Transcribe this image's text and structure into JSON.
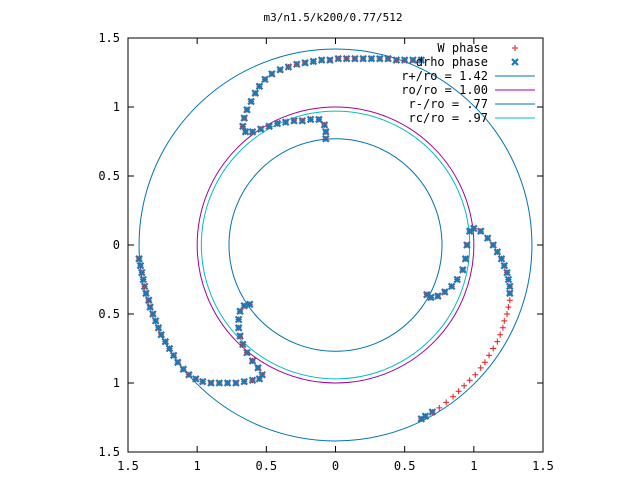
{
  "chart_data": {
    "type": "scatter",
    "title": "m3/n1.5/k200/0.77/512",
    "xlabel": "",
    "ylabel": "",
    "xlim": [
      -1.5,
      1.5
    ],
    "ylim": [
      -1.5,
      1.5
    ],
    "x_ticks": [
      {
        "value": -1.5,
        "label": "1.5"
      },
      {
        "value": -1,
        "label": "1"
      },
      {
        "value": -0.5,
        "label": "0.5"
      },
      {
        "value": 0,
        "label": "0"
      },
      {
        "value": 0.5,
        "label": "0.5"
      },
      {
        "value": 1,
        "label": "1"
      },
      {
        "value": 1.5,
        "label": "1.5"
      }
    ],
    "y_ticks": [
      {
        "value": 1.5,
        "label": "1.5"
      },
      {
        "value": 1,
        "label": "1"
      },
      {
        "value": 0.5,
        "label": "0.5"
      },
      {
        "value": 0,
        "label": "0"
      },
      {
        "value": -0.5,
        "label": "0.5"
      },
      {
        "value": -1,
        "label": "1"
      },
      {
        "value": -1.5,
        "label": "1.5"
      }
    ],
    "grid": false,
    "legend_position": "top-right",
    "circles": [
      {
        "name": "r+/ro = 1.42",
        "radius": 1.42,
        "color": "#0072b2"
      },
      {
        "name": "ro/ro = 1.00",
        "radius": 1.0,
        "color": "#a000a0"
      },
      {
        "name": "r-/ro = .77",
        "radius": 0.77,
        "color": "#0072b2"
      },
      {
        "name": "rc/ro = .97",
        "radius": 0.97,
        "color": "#00c0c0"
      }
    ],
    "series": [
      {
        "name": "W phase",
        "marker": "plus",
        "color": "#e41a1c",
        "points": [
          [
            -1.42,
            -0.1
          ],
          [
            -1.41,
            -0.15
          ],
          [
            -1.4,
            -0.2
          ],
          [
            -1.39,
            -0.25
          ],
          [
            -1.38,
            -0.3
          ],
          [
            -1.37,
            -0.35
          ],
          [
            -1.35,
            -0.4
          ],
          [
            -1.34,
            -0.45
          ],
          [
            -1.32,
            -0.5
          ],
          [
            -1.3,
            -0.55
          ],
          [
            -1.28,
            -0.6
          ],
          [
            -1.26,
            -0.65
          ],
          [
            -1.23,
            -0.7
          ],
          [
            -1.2,
            -0.75
          ],
          [
            -1.17,
            -0.8
          ],
          [
            -1.14,
            -0.85
          ],
          [
            -1.1,
            -0.9
          ],
          [
            -1.06,
            -0.94
          ],
          [
            -1.01,
            -0.97
          ],
          [
            -0.96,
            -0.99
          ],
          [
            -0.9,
            -1.0
          ],
          [
            -0.84,
            -1.0
          ],
          [
            -0.78,
            -1.0
          ],
          [
            -0.72,
            -1.0
          ],
          [
            -0.66,
            -0.99
          ],
          [
            -0.6,
            -0.98
          ],
          [
            -0.55,
            -0.97
          ],
          [
            -0.53,
            -0.94
          ],
          [
            -0.56,
            -0.89
          ],
          [
            -0.6,
            -0.84
          ],
          [
            -0.64,
            -0.78
          ],
          [
            -0.67,
            -0.72
          ],
          [
            -0.69,
            -0.66
          ],
          [
            -0.7,
            -0.6
          ],
          [
            -0.7,
            -0.54
          ],
          [
            -0.69,
            -0.48
          ],
          [
            -0.66,
            -0.44
          ],
          [
            -0.62,
            -0.43
          ],
          [
            0.62,
            1.34
          ],
          [
            0.56,
            1.34
          ],
          [
            0.5,
            1.34
          ],
          [
            0.44,
            1.34
          ],
          [
            0.38,
            1.35
          ],
          [
            0.32,
            1.35
          ],
          [
            0.26,
            1.35
          ],
          [
            0.2,
            1.35
          ],
          [
            0.14,
            1.35
          ],
          [
            0.08,
            1.35
          ],
          [
            0.02,
            1.35
          ],
          [
            -0.04,
            1.34
          ],
          [
            -0.1,
            1.34
          ],
          [
            -0.16,
            1.33
          ],
          [
            -0.22,
            1.32
          ],
          [
            -0.28,
            1.31
          ],
          [
            -0.34,
            1.29
          ],
          [
            -0.4,
            1.27
          ],
          [
            -0.46,
            1.24
          ],
          [
            -0.51,
            1.2
          ],
          [
            -0.55,
            1.15
          ],
          [
            -0.58,
            1.1
          ],
          [
            -0.61,
            1.04
          ],
          [
            -0.64,
            0.98
          ],
          [
            -0.66,
            0.92
          ],
          [
            -0.67,
            0.86
          ],
          [
            -0.65,
            0.82
          ],
          [
            -0.6,
            0.82
          ],
          [
            -0.54,
            0.84
          ],
          [
            -0.48,
            0.86
          ],
          [
            -0.42,
            0.88
          ],
          [
            -0.36,
            0.89
          ],
          [
            -0.3,
            0.9
          ],
          [
            -0.24,
            0.9
          ],
          [
            -0.18,
            0.91
          ],
          [
            -0.12,
            0.91
          ],
          [
            -0.08,
            0.87
          ],
          [
            -0.07,
            0.82
          ],
          [
            -0.07,
            0.77
          ],
          [
            1.0,
            0.12
          ],
          [
            1.05,
            0.1
          ],
          [
            1.1,
            0.05
          ],
          [
            1.14,
            0.0
          ],
          [
            1.17,
            -0.05
          ],
          [
            1.2,
            -0.1
          ],
          [
            1.22,
            -0.15
          ],
          [
            1.24,
            -0.2
          ],
          [
            1.25,
            -0.25
          ],
          [
            1.26,
            -0.3
          ],
          [
            1.26,
            -0.35
          ],
          [
            1.26,
            -0.4
          ],
          [
            1.25,
            -0.45
          ],
          [
            1.24,
            -0.5
          ],
          [
            1.22,
            -0.55
          ],
          [
            1.21,
            -0.6
          ],
          [
            1.19,
            -0.65
          ],
          [
            1.17,
            -0.7
          ],
          [
            1.14,
            -0.75
          ],
          [
            1.11,
            -0.8
          ],
          [
            1.08,
            -0.85
          ],
          [
            1.05,
            -0.89
          ],
          [
            1.01,
            -0.94
          ],
          [
            0.97,
            -0.98
          ],
          [
            0.93,
            -1.02
          ],
          [
            0.89,
            -1.06
          ],
          [
            0.85,
            -1.1
          ],
          [
            0.8,
            -1.14
          ],
          [
            0.75,
            -1.18
          ],
          [
            0.7,
            -1.21
          ],
          [
            0.65,
            -1.24
          ],
          [
            0.62,
            -1.26
          ],
          [
            0.97,
            0.1
          ],
          [
            0.95,
            0.0
          ],
          [
            0.94,
            -0.1
          ],
          [
            0.92,
            -0.18
          ],
          [
            0.88,
            -0.25
          ],
          [
            0.84,
            -0.3
          ],
          [
            0.79,
            -0.34
          ],
          [
            0.74,
            -0.37
          ],
          [
            0.69,
            -0.38
          ],
          [
            0.66,
            -0.36
          ]
        ]
      },
      {
        "name": "drho phase",
        "marker": "cross",
        "color": "#1f78b4",
        "points": [
          [
            -1.42,
            -0.1
          ],
          [
            -1.41,
            -0.15
          ],
          [
            -1.4,
            -0.2
          ],
          [
            -1.39,
            -0.25
          ],
          [
            -1.38,
            -0.3
          ],
          [
            -1.37,
            -0.35
          ],
          [
            -1.35,
            -0.4
          ],
          [
            -1.34,
            -0.45
          ],
          [
            -1.32,
            -0.5
          ],
          [
            -1.3,
            -0.55
          ],
          [
            -1.28,
            -0.6
          ],
          [
            -1.26,
            -0.65
          ],
          [
            -1.23,
            -0.7
          ],
          [
            -1.2,
            -0.75
          ],
          [
            -1.17,
            -0.8
          ],
          [
            -1.14,
            -0.85
          ],
          [
            -1.1,
            -0.9
          ],
          [
            -1.06,
            -0.94
          ],
          [
            -1.01,
            -0.97
          ],
          [
            -0.96,
            -0.99
          ],
          [
            -0.9,
            -1.0
          ],
          [
            -0.84,
            -1.0
          ],
          [
            -0.78,
            -1.0
          ],
          [
            -0.72,
            -1.0
          ],
          [
            -0.66,
            -0.99
          ],
          [
            -0.6,
            -0.98
          ],
          [
            -0.55,
            -0.97
          ],
          [
            -0.53,
            -0.94
          ],
          [
            -0.56,
            -0.89
          ],
          [
            -0.6,
            -0.84
          ],
          [
            -0.64,
            -0.78
          ],
          [
            -0.67,
            -0.72
          ],
          [
            -0.69,
            -0.66
          ],
          [
            -0.7,
            -0.6
          ],
          [
            -0.7,
            -0.54
          ],
          [
            -0.69,
            -0.48
          ],
          [
            -0.66,
            -0.44
          ],
          [
            -0.62,
            -0.43
          ],
          [
            0.62,
            1.34
          ],
          [
            0.56,
            1.34
          ],
          [
            0.5,
            1.34
          ],
          [
            0.44,
            1.34
          ],
          [
            0.38,
            1.35
          ],
          [
            0.32,
            1.35
          ],
          [
            0.26,
            1.35
          ],
          [
            0.2,
            1.35
          ],
          [
            0.14,
            1.35
          ],
          [
            0.08,
            1.35
          ],
          [
            0.02,
            1.35
          ],
          [
            -0.04,
            1.34
          ],
          [
            -0.1,
            1.34
          ],
          [
            -0.16,
            1.33
          ],
          [
            -0.22,
            1.32
          ],
          [
            -0.28,
            1.31
          ],
          [
            -0.34,
            1.29
          ],
          [
            -0.4,
            1.27
          ],
          [
            -0.46,
            1.24
          ],
          [
            -0.51,
            1.2
          ],
          [
            -0.55,
            1.15
          ],
          [
            -0.58,
            1.1
          ],
          [
            -0.61,
            1.04
          ],
          [
            -0.64,
            0.98
          ],
          [
            -0.66,
            0.92
          ],
          [
            -0.67,
            0.86
          ],
          [
            -0.65,
            0.82
          ],
          [
            -0.6,
            0.82
          ],
          [
            -0.54,
            0.84
          ],
          [
            -0.48,
            0.86
          ],
          [
            -0.42,
            0.88
          ],
          [
            -0.36,
            0.89
          ],
          [
            -0.3,
            0.9
          ],
          [
            -0.24,
            0.9
          ],
          [
            -0.18,
            0.91
          ],
          [
            -0.12,
            0.91
          ],
          [
            -0.08,
            0.87
          ],
          [
            -0.07,
            0.82
          ],
          [
            -0.07,
            0.77
          ],
          [
            1.0,
            0.12
          ],
          [
            1.05,
            0.1
          ],
          [
            1.1,
            0.05
          ],
          [
            1.14,
            0.0
          ],
          [
            1.17,
            -0.05
          ],
          [
            1.2,
            -0.1
          ],
          [
            1.22,
            -0.15
          ],
          [
            1.24,
            -0.2
          ],
          [
            1.25,
            -0.25
          ],
          [
            1.26,
            -0.3
          ],
          [
            1.26,
            -0.35
          ],
          [
            0.62,
            -1.26
          ],
          [
            0.65,
            -1.24
          ],
          [
            0.7,
            -1.21
          ],
          [
            0.97,
            0.1
          ],
          [
            0.95,
            0.0
          ],
          [
            0.94,
            -0.1
          ],
          [
            0.92,
            -0.18
          ],
          [
            0.88,
            -0.25
          ],
          [
            0.84,
            -0.3
          ],
          [
            0.79,
            -0.34
          ],
          [
            0.74,
            -0.37
          ],
          [
            0.69,
            -0.38
          ],
          [
            0.66,
            -0.36
          ]
        ]
      }
    ]
  }
}
